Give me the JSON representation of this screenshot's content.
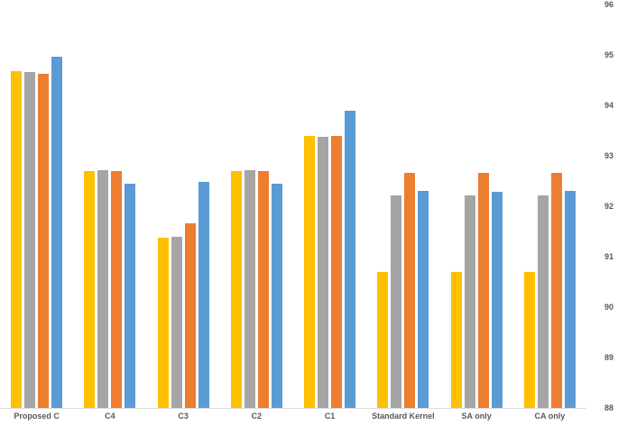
{
  "chart_data": {
    "type": "bar",
    "title": "",
    "xlabel": "",
    "ylabel": "",
    "categories": [
      "Proposed C",
      "C4",
      "C3",
      "C2",
      "C1",
      "Standard Kernel",
      "SA only",
      "CA only"
    ],
    "series": [
      {
        "name": "yellow",
        "color": "#FFC000",
        "values": [
          94.68,
          92.7,
          91.37,
          92.7,
          93.4,
          90.7,
          90.7,
          90.7
        ]
      },
      {
        "name": "gray",
        "color": "#A5A5A5",
        "values": [
          94.66,
          92.72,
          91.4,
          92.72,
          93.38,
          92.21,
          92.21,
          92.22
        ]
      },
      {
        "name": "orange",
        "color": "#ED7D31",
        "values": [
          94.62,
          92.7,
          91.67,
          92.7,
          93.4,
          92.66,
          92.66,
          92.66
        ]
      },
      {
        "name": "blue",
        "color": "#5B9BD5",
        "values": [
          94.96,
          92.45,
          92.48,
          92.44,
          93.9,
          92.31,
          92.29,
          92.3
        ]
      }
    ],
    "ylim": [
      88,
      96
    ],
    "yticks": [
      96,
      95,
      94,
      93,
      92,
      91,
      90,
      89,
      88
    ],
    "ytick_side": "right",
    "grid": false,
    "legend_position": "none",
    "axis_label_color": "#595959",
    "baseline_color": "#D9D9D9",
    "background": "#FFFFFF"
  }
}
